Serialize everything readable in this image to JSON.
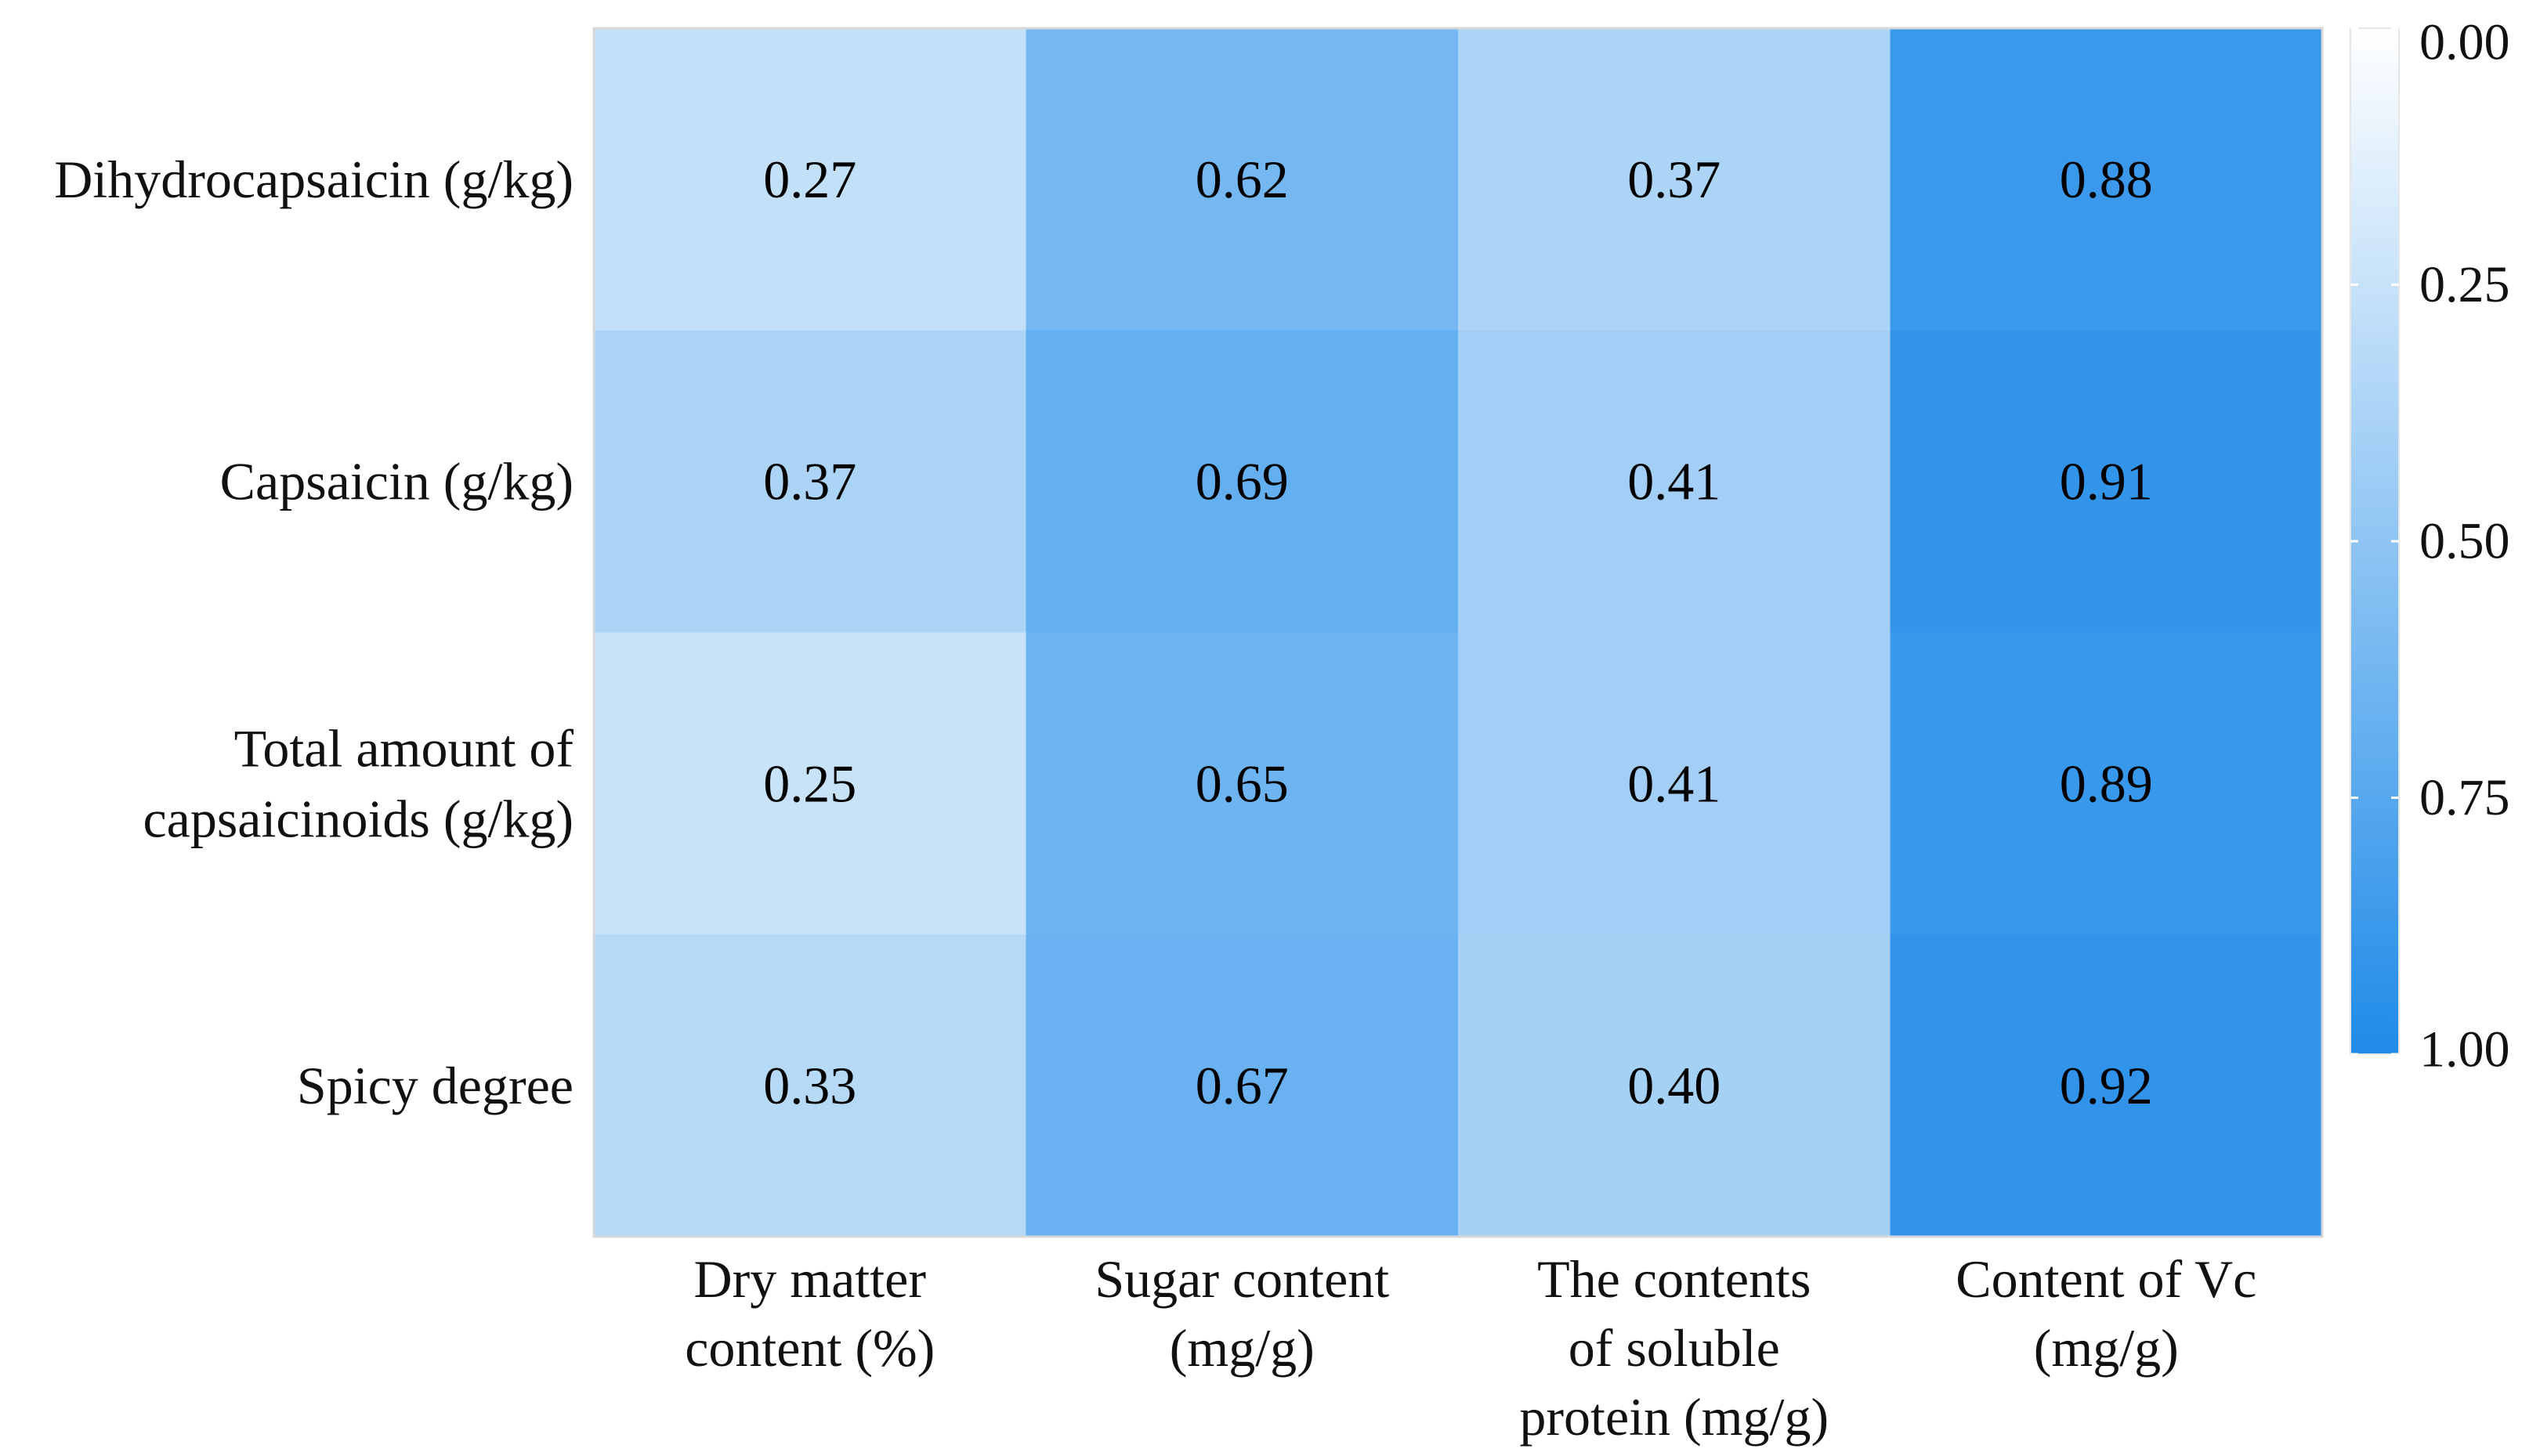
{
  "chart_data": {
    "type": "heatmap",
    "rows": [
      [
        "Dihydrocapsaicin (g/kg)"
      ],
      [
        "Capsaicin (g/kg)"
      ],
      [
        "Total amount of",
        "capsaicinoids (g/kg)"
      ],
      [
        "Spicy degree"
      ]
    ],
    "columns": [
      [
        "Dry matter",
        "content (%)"
      ],
      [
        "Sugar content",
        "(mg/g)"
      ],
      [
        "The contents",
        "of soluble",
        "protein (mg/g)"
      ],
      [
        "Content of Vc",
        "(mg/g)"
      ]
    ],
    "values": [
      [
        0.27,
        0.62,
        0.37,
        0.88
      ],
      [
        0.37,
        0.69,
        0.41,
        0.91
      ],
      [
        0.25,
        0.65,
        0.41,
        0.89
      ],
      [
        0.33,
        0.67,
        0.4,
        0.92
      ]
    ],
    "value_labels": [
      [
        "0.27",
        "0.62",
        "0.37",
        "0.88"
      ],
      [
        "0.37",
        "0.69",
        "0.41",
        "0.91"
      ],
      [
        "0.25",
        "0.65",
        "0.41",
        "0.89"
      ],
      [
        "0.33",
        "0.67",
        "0.40",
        "0.92"
      ]
    ],
    "colorbar": {
      "min": 0.0,
      "max": 1.0,
      "ticks": [
        0.0,
        0.25,
        0.5,
        0.75,
        1.0
      ],
      "tick_labels": [
        "0.00",
        "0.25",
        "0.50",
        "0.75",
        "1.00"
      ],
      "color_low": "#ffffff",
      "color_high": "#1f8be8",
      "placement": "right"
    }
  }
}
